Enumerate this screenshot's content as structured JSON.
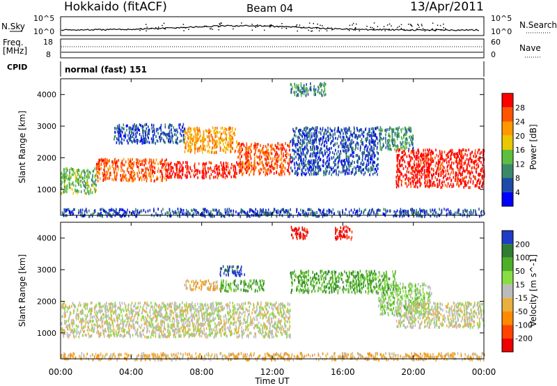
{
  "header": {
    "station": "Hokkaido (fitACF)",
    "beam": "Beam 04",
    "date": "13/Apr/2011"
  },
  "sky_panel": {
    "left_label": "N.Sky",
    "right_label": "N.Search",
    "ticks_top": "10^5",
    "ticks_bottom": "10^0"
  },
  "freq_panel": {
    "left_label": "Freq.",
    "left_unit": "[MHz]",
    "left_top": "18",
    "left_bottom": "8",
    "right_top": "60",
    "right_bottom": "0",
    "right_label": "Nave"
  },
  "cpid": {
    "label": "CPID",
    "value": "normal (fast) 151"
  },
  "colors": {
    "power": [
      "#0000ff",
      "#1e4aa8",
      "#3a8a6a",
      "#5cbf3e",
      "#e8c800",
      "#ff9900",
      "#ff5500",
      "#ff0000"
    ],
    "velocity": [
      "#1e3cc8",
      "#2e7d32",
      "#4caf28",
      "#88dd44",
      "#bbbbbb",
      "#e8b040",
      "#ff8a00",
      "#ff4400",
      "#ee0000"
    ],
    "ground": "#bbbbbb"
  },
  "chart_data": [
    {
      "type": "heatmap",
      "name": "power",
      "ylabel": "Slant Range [km]",
      "xlabel": "Time UT",
      "xlim": [
        0,
        24
      ],
      "ylim": [
        180,
        4500
      ],
      "x_ticks": [
        "00:00",
        "04:00",
        "08:00",
        "12:00",
        "16:00",
        "20:00",
        "00:00"
      ],
      "y_ticks": [
        1000,
        2000,
        3000,
        4000
      ],
      "colorbar": {
        "title": "Power [dB]",
        "ticks": [
          "4",
          "8",
          "12",
          "16",
          "20",
          "24",
          "28"
        ]
      },
      "regions": [
        {
          "t0": 0,
          "t1": 2,
          "r0": 900,
          "r1": 1700,
          "level": 3
        },
        {
          "t0": 2,
          "t1": 6,
          "r0": 1300,
          "r1": 2000,
          "level": 6
        },
        {
          "t0": 6,
          "t1": 10,
          "r0": 1400,
          "r1": 1900,
          "level": 7
        },
        {
          "t0": 10,
          "t1": 13,
          "r0": 1500,
          "r1": 2500,
          "level": 6
        },
        {
          "t0": 7,
          "t1": 10,
          "r0": 2200,
          "r1": 3000,
          "level": 5
        },
        {
          "t0": 13,
          "t1": 18,
          "r0": 1500,
          "r1": 3000,
          "level": 1
        },
        {
          "t0": 13,
          "t1": 15,
          "r0": 4000,
          "r1": 4400,
          "level": 2
        },
        {
          "t0": 19,
          "t1": 24,
          "r0": 1100,
          "r1": 2300,
          "level": 7
        },
        {
          "t0": 18,
          "t1": 20,
          "r0": 2300,
          "r1": 3000,
          "level": 2
        },
        {
          "t0": 3,
          "t1": 7,
          "r0": 2500,
          "r1": 3100,
          "level": 1
        },
        {
          "t0": 0,
          "t1": 24,
          "r0": 180,
          "r1": 420,
          "level": 1
        }
      ]
    },
    {
      "type": "heatmap",
      "name": "velocity",
      "ylabel": "Slant Range [km]",
      "xlabel": "Time UT",
      "xlim": [
        0,
        24
      ],
      "ylim": [
        180,
        4500
      ],
      "x_ticks": [
        "00:00",
        "04:00",
        "08:00",
        "12:00",
        "16:00",
        "20:00",
        "00:00"
      ],
      "y_ticks": [
        1000,
        2000,
        3000,
        4000
      ],
      "colorbar": {
        "title": "Velocity [m s^-1]",
        "ticks": [
          "200",
          "100",
          "50",
          "15",
          "-15",
          "-50",
          "-100",
          "-200"
        ]
      },
      "regions": [
        {
          "t0": 0,
          "t1": 13,
          "r0": 900,
          "r1": 2000,
          "level": 4
        },
        {
          "t0": 9,
          "t1": 10.5,
          "r0": 2850,
          "r1": 3150,
          "level": 0
        },
        {
          "t0": 9,
          "t1": 11.5,
          "r0": 2350,
          "r1": 2700,
          "level": 2
        },
        {
          "t0": 7,
          "t1": 9,
          "r0": 2400,
          "r1": 2700,
          "level": 5
        },
        {
          "t0": 13,
          "t1": 14,
          "r0": 4000,
          "r1": 4400,
          "level": 8
        },
        {
          "t0": 15.5,
          "t1": 16.5,
          "r0": 4000,
          "r1": 4400,
          "level": 8
        },
        {
          "t0": 18,
          "t1": 21,
          "r0": 1600,
          "r1": 2600,
          "level": 3
        },
        {
          "t0": 13,
          "t1": 19,
          "r0": 2300,
          "r1": 3000,
          "level": 2
        },
        {
          "t0": 19,
          "t1": 24,
          "r0": 1200,
          "r1": 2000,
          "level": 4
        },
        {
          "t0": 0,
          "t1": 24,
          "r0": 180,
          "r1": 400,
          "level": 5
        }
      ]
    }
  ],
  "xlabel": "Time UT"
}
